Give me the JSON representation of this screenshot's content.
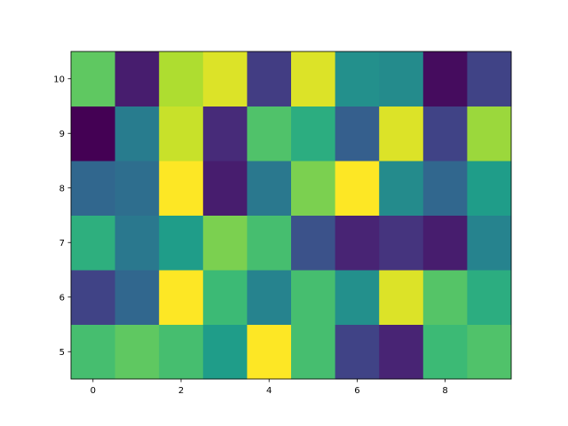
{
  "chart_data": {
    "type": "heatmap",
    "colormap": "viridis",
    "x": [
      0,
      1,
      2,
      3,
      4,
      5,
      6,
      7,
      8,
      9
    ],
    "y": [
      5,
      6,
      7,
      8,
      9,
      10
    ],
    "values": [
      [
        0.7,
        0.75,
        0.7,
        0.55,
        1.0,
        0.7,
        0.2,
        0.1,
        0.68,
        0.72
      ],
      [
        0.2,
        0.33,
        1.0,
        0.68,
        0.45,
        0.7,
        0.5,
        0.95,
        0.73,
        0.62
      ],
      [
        0.63,
        0.4,
        0.55,
        0.8,
        0.7,
        0.25,
        0.1,
        0.15,
        0.08,
        0.45
      ],
      [
        0.33,
        0.36,
        1.0,
        0.08,
        0.4,
        0.8,
        1.0,
        0.48,
        0.33,
        0.55
      ],
      [
        0.0,
        0.42,
        0.92,
        0.12,
        0.72,
        0.62,
        0.3,
        0.95,
        0.2,
        0.85
      ],
      [
        0.75,
        0.08,
        0.88,
        0.95,
        0.18,
        0.95,
        0.5,
        0.48,
        0.03,
        0.2
      ]
    ],
    "vlim": [
      0,
      1
    ],
    "xlim": [
      -0.5,
      9.5
    ],
    "xticks": [
      0,
      2,
      4,
      6,
      8
    ],
    "ylim": [
      4.5,
      10.5
    ],
    "yticks": [
      5,
      6,
      7,
      8,
      9,
      10
    ]
  }
}
